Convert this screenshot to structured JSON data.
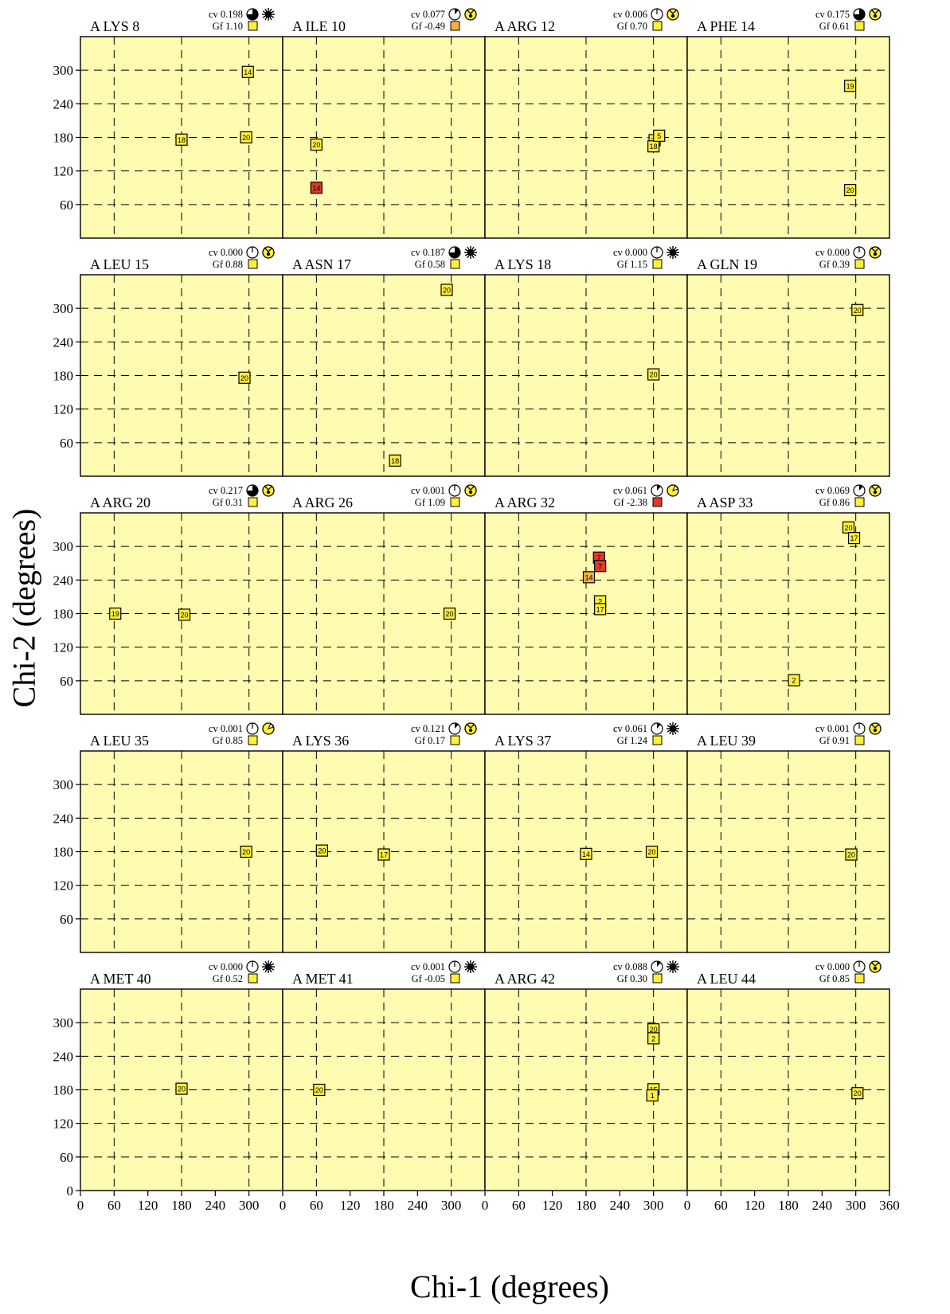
{
  "chart_data": {
    "type": "scatter",
    "xlabel": "Chi-1 (degrees)",
    "ylabel": "Chi-2 (degrees)",
    "xlim": [
      0,
      360
    ],
    "ylim": [
      0,
      360
    ],
    "xticks": [
      0,
      60,
      120,
      180,
      240,
      300,
      360
    ],
    "yticks": [
      0,
      60,
      120,
      180,
      240,
      300
    ],
    "grid": true,
    "colors": {
      "panel": "#fffbb0",
      "normal": "#ffef3a",
      "warn": "#f3b23a",
      "bad": "#e23a28"
    },
    "panels": [
      {
        "title": "A LYS 8",
        "cv": "cv 0.198",
        "gf": "Gf  1.10",
        "gf_color": "#ffef3a",
        "cv_fill": 0.75,
        "icon": "sunburst",
        "points": [
          {
            "x": 298,
            "y": 297,
            "label": "14",
            "c": "normal"
          },
          {
            "x": 180,
            "y": 176,
            "label": "18",
            "c": "normal"
          },
          {
            "x": 295,
            "y": 180,
            "label": "20",
            "c": "normal"
          }
        ]
      },
      {
        "title": "A ILE 10",
        "cv": "cv 0.077",
        "gf": "Gf -0.49",
        "gf_color": "#f3b23a",
        "cv_fill": 0.12,
        "icon": "catch",
        "points": [
          {
            "x": 60,
            "y": 167,
            "label": "20",
            "c": "normal"
          },
          {
            "x": 60,
            "y": 90,
            "label": "14",
            "c": "bad"
          }
        ]
      },
      {
        "title": "A ARG 12",
        "cv": "cv 0.006",
        "gf": "Gf  0.70",
        "gf_color": "#ffef3a",
        "cv_fill": 0.0,
        "icon": "catch",
        "points": [
          {
            "x": 302,
            "y": 175,
            "label": "20",
            "c": "normal"
          },
          {
            "x": 300,
            "y": 164,
            "label": "18",
            "c": "normal"
          },
          {
            "x": 310,
            "y": 183,
            "label": "5",
            "c": "normal"
          }
        ]
      },
      {
        "title": "A PHE 14",
        "cv": "cv 0.175",
        "gf": "Gf  0.61",
        "gf_color": "#ffef3a",
        "cv_fill": 0.75,
        "icon": "catch",
        "points": [
          {
            "x": 290,
            "y": 272,
            "label": "19",
            "c": "normal"
          },
          {
            "x": 290,
            "y": 86,
            "label": "20",
            "c": "normal"
          }
        ]
      },
      {
        "title": "A LEU 15",
        "cv": "cv 0.000",
        "gf": "Gf  0.88",
        "gf_color": "#ffef3a",
        "cv_fill": 0.0,
        "icon": "catch",
        "points": [
          {
            "x": 292,
            "y": 176,
            "label": "20",
            "c": "normal"
          }
        ]
      },
      {
        "title": "A ASN 17",
        "cv": "cv 0.187",
        "gf": "Gf  0.58",
        "gf_color": "#ffef3a",
        "cv_fill": 0.75,
        "icon": "sunburst",
        "points": [
          {
            "x": 292,
            "y": 333,
            "label": "20",
            "c": "normal"
          },
          {
            "x": 200,
            "y": 28,
            "label": "18",
            "c": "normal"
          }
        ]
      },
      {
        "title": "A LYS 18",
        "cv": "cv 0.000",
        "gf": "Gf  1.15",
        "gf_color": "#ffef3a",
        "cv_fill": 0.0,
        "icon": "sunburst",
        "points": [
          {
            "x": 300,
            "y": 182,
            "label": "20",
            "c": "normal"
          }
        ]
      },
      {
        "title": "A GLN 19",
        "cv": "cv 0.000",
        "gf": "Gf  0.39",
        "gf_color": "#ffef3a",
        "cv_fill": 0.0,
        "icon": "catch",
        "points": [
          {
            "x": 303,
            "y": 297,
            "label": "20",
            "c": "normal"
          }
        ]
      },
      {
        "title": "A ARG 20",
        "cv": "cv 0.217",
        "gf": "Gf  0.31",
        "gf_color": "#ffef3a",
        "cv_fill": 0.75,
        "icon": "catch",
        "points": [
          {
            "x": 62,
            "y": 180,
            "label": "19",
            "c": "normal"
          },
          {
            "x": 185,
            "y": 178,
            "label": "20",
            "c": "normal"
          }
        ]
      },
      {
        "title": "A ARG 26",
        "cv": "cv 0.001",
        "gf": "Gf  1.09",
        "gf_color": "#ffef3a",
        "cv_fill": 0.0,
        "icon": "catch",
        "points": [
          {
            "x": 297,
            "y": 180,
            "label": "20",
            "c": "normal"
          }
        ]
      },
      {
        "title": "A ARG 32",
        "cv": "cv 0.061",
        "gf": "Gf -2.38",
        "gf_color": "#e23a28",
        "cv_fill": 0.12,
        "icon": "pacman",
        "points": [
          {
            "x": 203,
            "y": 280,
            "label": "7",
            "c": "bad"
          },
          {
            "x": 205,
            "y": 265,
            "label": "7",
            "c": "bad"
          },
          {
            "x": 185,
            "y": 245,
            "label": "14",
            "c": "warn"
          },
          {
            "x": 205,
            "y": 202,
            "label": "2",
            "c": "normal"
          },
          {
            "x": 205,
            "y": 188,
            "label": "17",
            "c": "normal"
          }
        ]
      },
      {
        "title": "A ASP 33",
        "cv": "cv 0.069",
        "gf": "Gf  0.86",
        "gf_color": "#ffef3a",
        "cv_fill": 0.12,
        "icon": "catch",
        "points": [
          {
            "x": 287,
            "y": 334,
            "label": "20",
            "c": "normal"
          },
          {
            "x": 297,
            "y": 315,
            "label": "17",
            "c": "normal"
          },
          {
            "x": 190,
            "y": 61,
            "label": "2",
            "c": "normal"
          }
        ]
      },
      {
        "title": "A LEU 35",
        "cv": "cv 0.001",
        "gf": "Gf  0.85",
        "gf_color": "#ffef3a",
        "cv_fill": 0.0,
        "icon": "pacman",
        "points": [
          {
            "x": 295,
            "y": 180,
            "label": "20",
            "c": "normal"
          }
        ]
      },
      {
        "title": "A LYS 36",
        "cv": "cv 0.121",
        "gf": "Gf  0.17",
        "gf_color": "#ffef3a",
        "cv_fill": 0.12,
        "icon": "catch",
        "points": [
          {
            "x": 70,
            "y": 182,
            "label": "20",
            "c": "normal"
          },
          {
            "x": 180,
            "y": 175,
            "label": "17",
            "c": "normal"
          }
        ]
      },
      {
        "title": "A LYS 37",
        "cv": "cv 0.061",
        "gf": "Gf  1.24",
        "gf_color": "#ffef3a",
        "cv_fill": 0.12,
        "icon": "sunburst",
        "points": [
          {
            "x": 180,
            "y": 176,
            "label": "14",
            "c": "normal"
          },
          {
            "x": 297,
            "y": 180,
            "label": "20",
            "c": "normal"
          }
        ]
      },
      {
        "title": "A LEU 39",
        "cv": "cv 0.001",
        "gf": "Gf  0.91",
        "gf_color": "#ffef3a",
        "cv_fill": 0.0,
        "icon": "catch",
        "points": [
          {
            "x": 292,
            "y": 175,
            "label": "20",
            "c": "normal"
          }
        ]
      },
      {
        "title": "A MET 40",
        "cv": "cv 0.000",
        "gf": "Gf  0.52",
        "gf_color": "#ffef3a",
        "cv_fill": 0.0,
        "icon": "sunburst",
        "points": [
          {
            "x": 180,
            "y": 182,
            "label": "20",
            "c": "normal"
          }
        ]
      },
      {
        "title": "A MET 41",
        "cv": "cv 0.001",
        "gf": "Gf -0.05",
        "gf_color": "#ffef3a",
        "cv_fill": 0.0,
        "icon": "sunburst",
        "points": [
          {
            "x": 65,
            "y": 180,
            "label": "20",
            "c": "normal"
          }
        ]
      },
      {
        "title": "A ARG 42",
        "cv": "cv 0.088",
        "gf": "Gf  0.30",
        "gf_color": "#ffef3a",
        "cv_fill": 0.12,
        "icon": "sunburst",
        "points": [
          {
            "x": 300,
            "y": 288,
            "label": "20",
            "c": "normal"
          },
          {
            "x": 300,
            "y": 272,
            "label": "2",
            "c": "normal"
          },
          {
            "x": 300,
            "y": 181,
            "label": "15",
            "c": "normal"
          },
          {
            "x": 298,
            "y": 170,
            "label": "1",
            "c": "normal"
          }
        ]
      },
      {
        "title": "A LEU 44",
        "cv": "cv 0.000",
        "gf": "Gf  0.85",
        "gf_color": "#ffef3a",
        "cv_fill": 0.0,
        "icon": "catch",
        "points": [
          {
            "x": 303,
            "y": 174,
            "label": "20",
            "c": "normal"
          }
        ]
      }
    ]
  }
}
